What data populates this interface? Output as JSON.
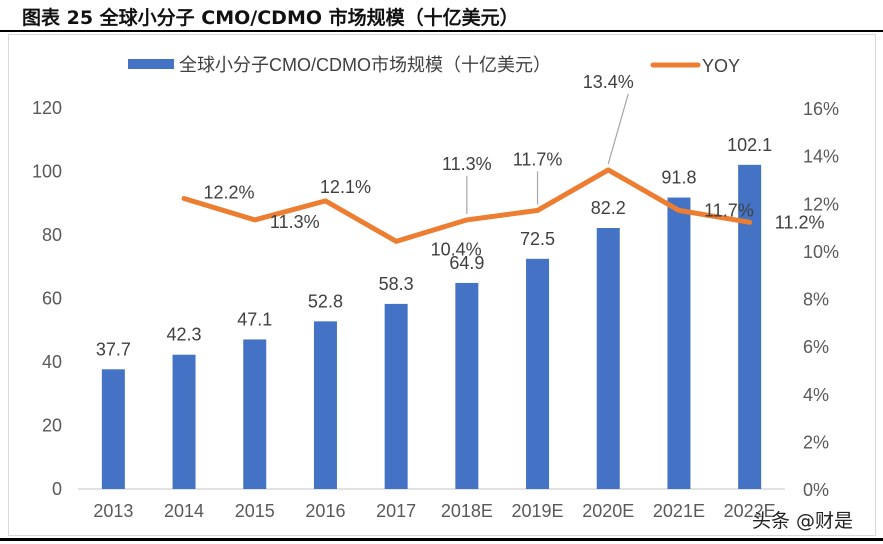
{
  "figure_title": "图表 25 全球小分子 CMO/CDMO 市场规模（十亿美元）",
  "watermark": "头条 @财是",
  "chart_data": {
    "type": "bar+line",
    "title": "全球小分子 CMO/CDMO 市场规模（十亿美元）",
    "categories": [
      "2013",
      "2014",
      "2015",
      "2016",
      "2017",
      "2018E",
      "2019E",
      "2020E",
      "2021E",
      "2022E"
    ],
    "series": [
      {
        "name": "全球小分子CMO/CDMO市场规模（十亿美元）",
        "type": "bar",
        "axis": "left",
        "color": "#4472C4",
        "values": [
          37.7,
          42.3,
          47.1,
          52.8,
          58.3,
          64.9,
          72.5,
          82.2,
          91.8,
          102.1
        ],
        "labels": [
          "37.7",
          "42.3",
          "47.1",
          "52.8",
          "58.3",
          "64.9",
          "72.5",
          "82.2",
          "91.8",
          "102.1"
        ]
      },
      {
        "name": "YOY",
        "type": "line",
        "axis": "right",
        "color": "#ED7D31",
        "values": [
          null,
          12.2,
          11.3,
          12.1,
          10.4,
          11.3,
          11.7,
          13.4,
          11.7,
          11.2
        ],
        "labels": [
          "",
          "12.2%",
          "11.3%",
          "12.1%",
          "10.4%",
          "11.3%",
          "11.7%",
          "13.4%",
          "11.7%",
          "11.2%"
        ]
      }
    ],
    "left_axis": {
      "ylim": [
        0,
        120
      ],
      "ticks": [
        "0",
        "20",
        "40",
        "60",
        "80",
        "100",
        "120"
      ]
    },
    "right_axis": {
      "ylim": [
        0,
        16
      ],
      "ticks": [
        "0%",
        "2%",
        "4%",
        "6%",
        "8%",
        "10%",
        "12%",
        "14%",
        "16%"
      ]
    },
    "legend": "top",
    "grid": false
  }
}
